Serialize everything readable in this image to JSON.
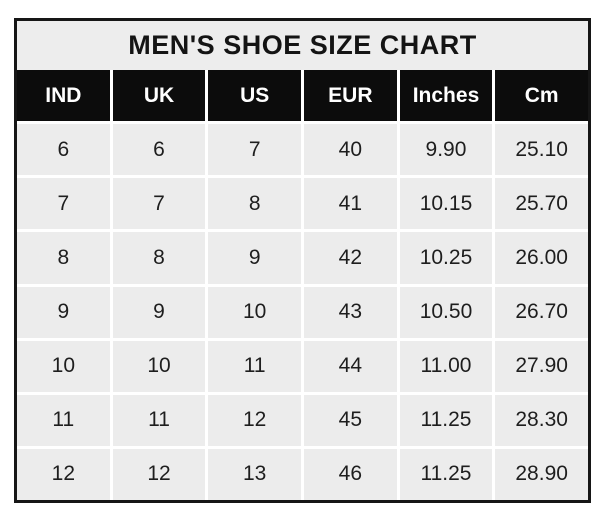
{
  "chart_data": {
    "type": "table",
    "title": "MEN'S SHOE SIZE CHART",
    "columns": [
      "IND",
      "UK",
      "US",
      "EUR",
      "Inches",
      "Cm"
    ],
    "rows": [
      [
        "6",
        "6",
        "7",
        "40",
        "9.90",
        "25.10"
      ],
      [
        "7",
        "7",
        "8",
        "41",
        "10.15",
        "25.70"
      ],
      [
        "8",
        "8",
        "9",
        "42",
        "10.25",
        "26.00"
      ],
      [
        "9",
        "9",
        "10",
        "43",
        "10.50",
        "26.70"
      ],
      [
        "10",
        "10",
        "11",
        "44",
        "11.00",
        "27.90"
      ],
      [
        "11",
        "11",
        "12",
        "45",
        "11.25",
        "28.30"
      ],
      [
        "12",
        "12",
        "13",
        "46",
        "11.25",
        "28.90"
      ]
    ],
    "layout": {
      "legend": "none",
      "grid": "white gridlines between cells",
      "header_style": "black background, white bold text",
      "body_style": "light gray cells, dark text"
    }
  },
  "colors": {
    "outer_border": "#161616",
    "title_bar_bg": "#ededed",
    "header_bg": "#0c0c0c",
    "header_text": "#ffffff",
    "cell_bg": "#ececec",
    "cell_text": "#1e1e1e",
    "gridline": "#ffffff",
    "page_bg": "#ffffff"
  }
}
